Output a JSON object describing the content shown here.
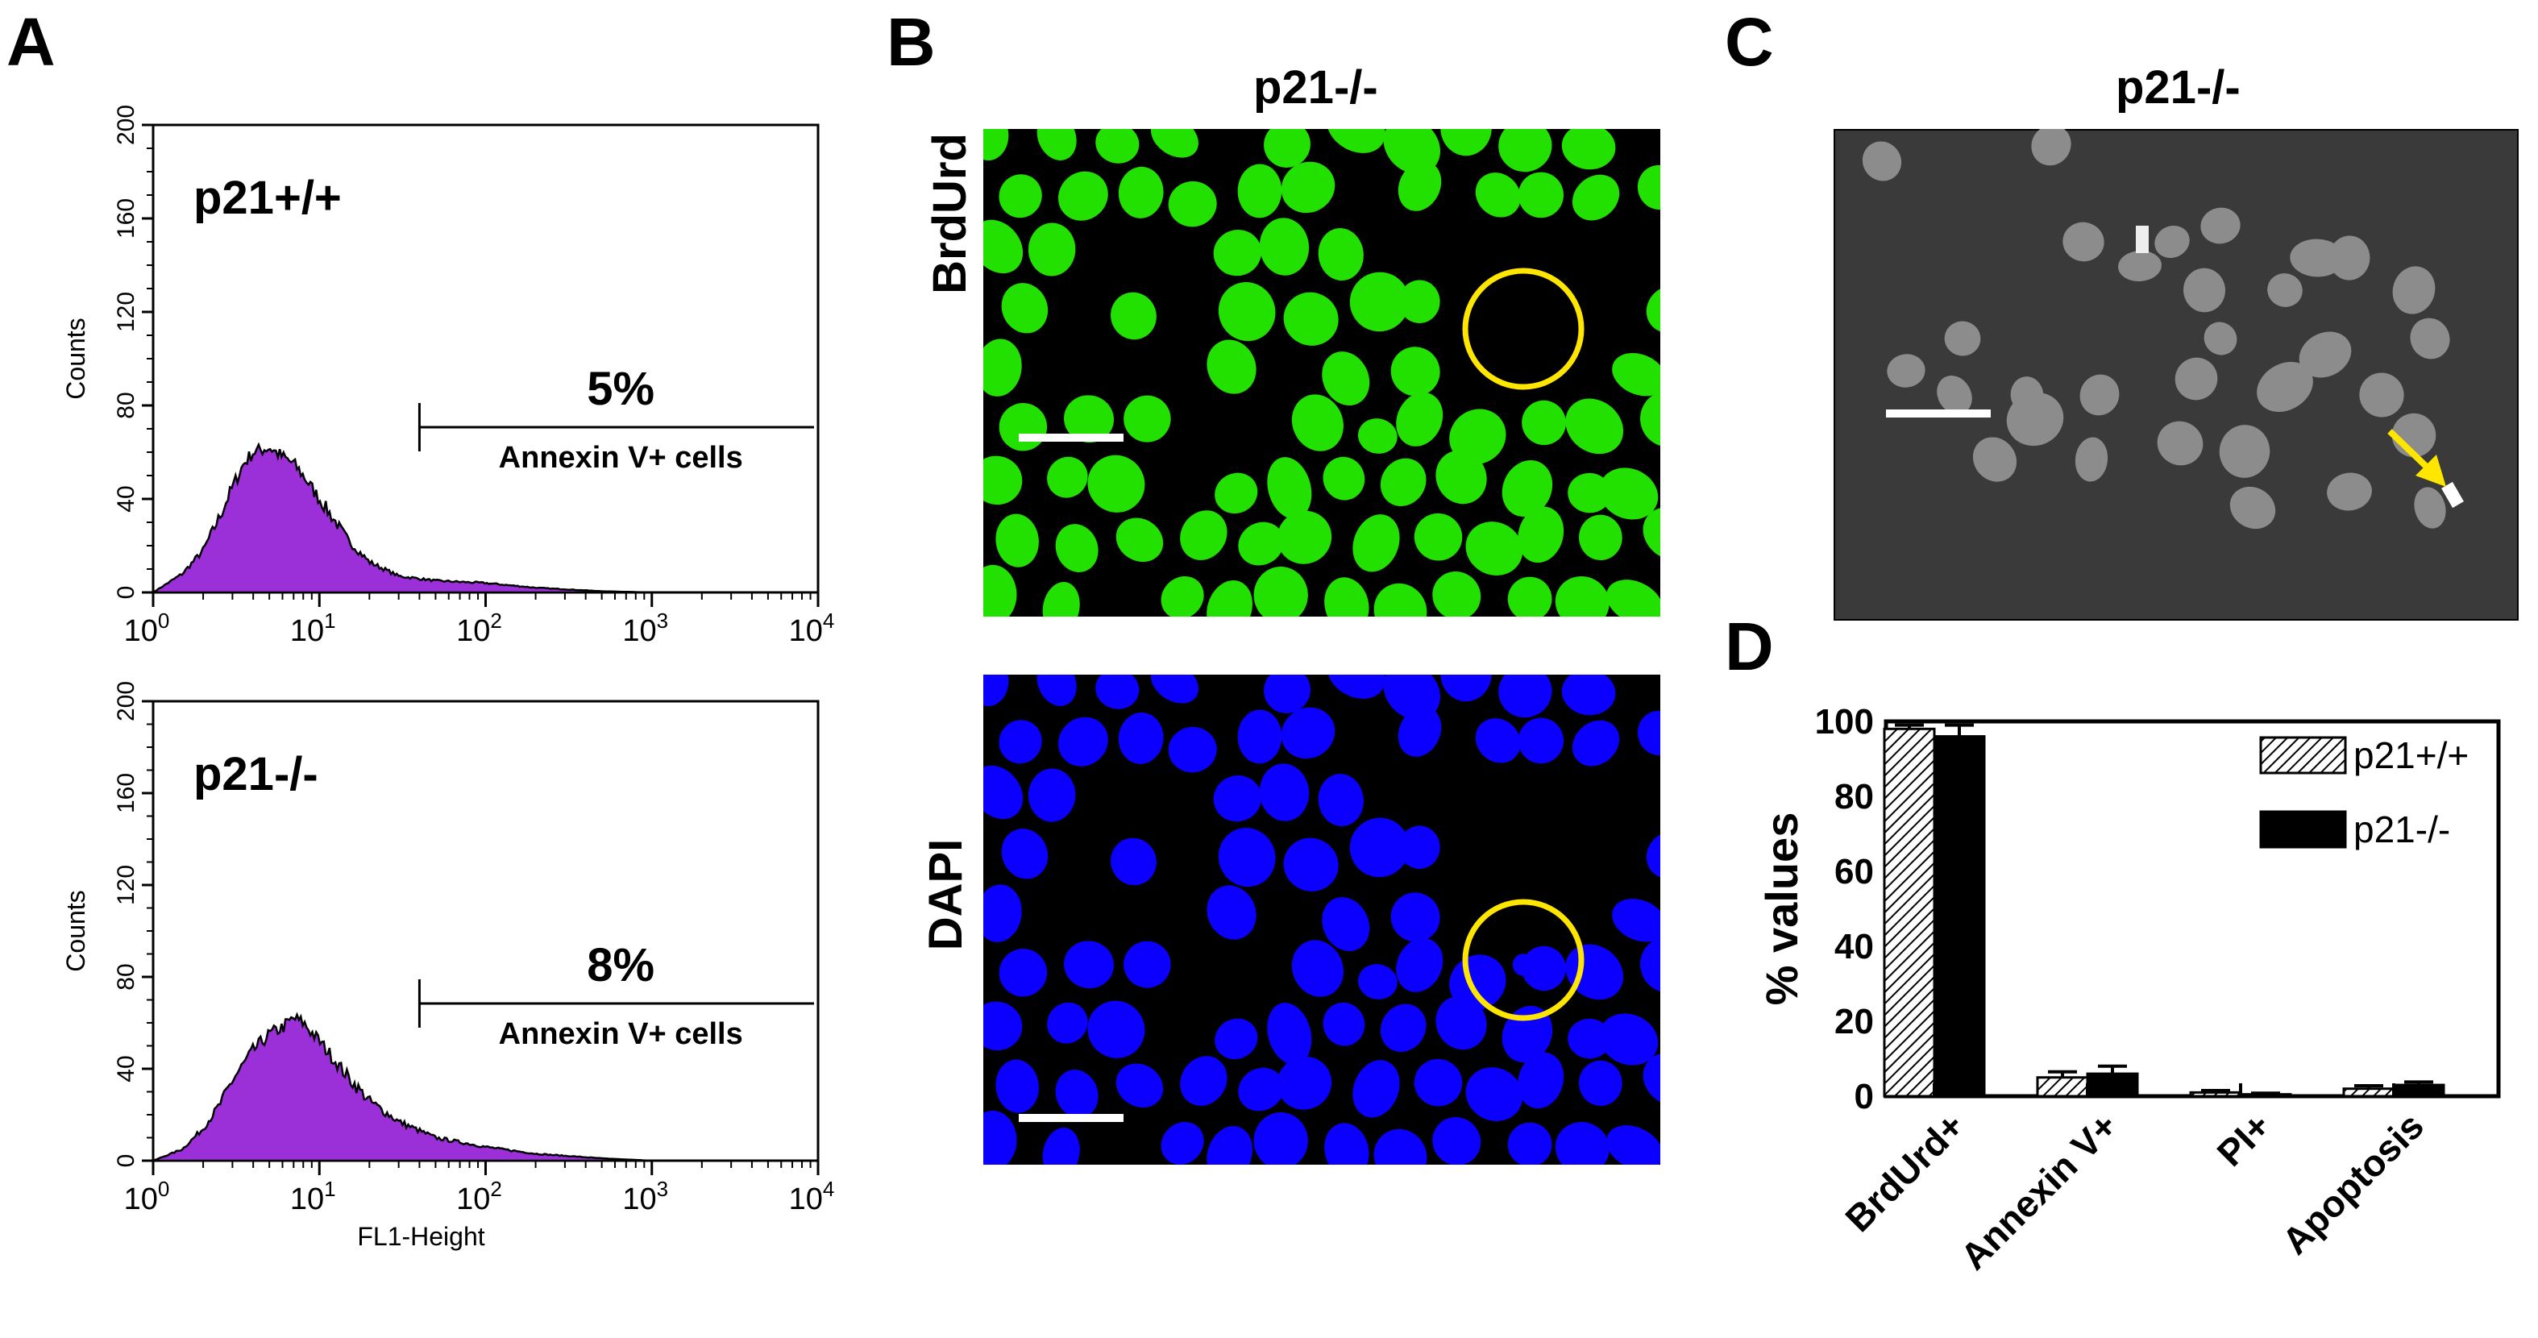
{
  "panels": {
    "a_letter": "A",
    "b_letter": "B",
    "c_letter": "C",
    "d_letter": "D"
  },
  "histograms": [
    {
      "sample": "p21+/+",
      "percent": "5%",
      "gate_label": "Annexin V+ cells",
      "ylabel": "Counts",
      "xlabel": "",
      "yticks": [
        "0",
        "40",
        "80",
        "120",
        "160",
        "200"
      ],
      "xtick_exponents": [
        "0",
        "1",
        "2",
        "3",
        "4"
      ],
      "xtick_base": "10",
      "fill_color": "#9b30d9"
    },
    {
      "sample": "p21-/-",
      "percent": "8%",
      "gate_label": "Annexin V+ cells",
      "ylabel": "Counts",
      "xlabel": "FL1-Height",
      "yticks": [
        "0",
        "40",
        "80",
        "120",
        "160",
        "200"
      ],
      "xtick_exponents": [
        "0",
        "1",
        "2",
        "3",
        "4"
      ],
      "xtick_base": "10",
      "fill_color": "#9b30d9"
    }
  ],
  "panel_b": {
    "title": "p21-/-",
    "top_stain": "BrdUrd",
    "bottom_stain": "DAPI",
    "top_color": "#22e000",
    "bottom_color": "#0b00ff",
    "circle_color": "#ffe600"
  },
  "panel_c": {
    "title": "p21-/-",
    "arrow_color": "#ffe600"
  },
  "chart_data": [
    {
      "type": "area",
      "title": "p21+/+",
      "xlabel": "",
      "ylabel": "Counts",
      "xscale": "log",
      "xlim": [
        1,
        10000
      ],
      "ylim": [
        0,
        200
      ],
      "gate_start": 40,
      "gate_end": 10000,
      "gate_percent": "5%",
      "x": [
        1,
        1.5,
        2,
        2.5,
        3,
        3.5,
        4,
        5,
        6,
        7,
        8,
        10,
        12,
        15,
        20,
        30,
        50,
        100,
        200,
        500,
        1000
      ],
      "y": [
        0,
        8,
        18,
        32,
        45,
        55,
        60,
        62,
        58,
        55,
        50,
        40,
        32,
        22,
        13,
        7,
        5,
        4,
        2,
        0.5,
        0
      ]
    },
    {
      "type": "area",
      "title": "p21-/-",
      "xlabel": "FL1-Height",
      "ylabel": "Counts",
      "xscale": "log",
      "xlim": [
        1,
        10000
      ],
      "ylim": [
        0,
        200
      ],
      "gate_start": 40,
      "gate_end": 10000,
      "gate_percent": "8%",
      "x": [
        1,
        1.5,
        2,
        2.5,
        3,
        4,
        5,
        6,
        7,
        8,
        10,
        12,
        15,
        20,
        30,
        50,
        100,
        200,
        500,
        1000
      ],
      "y": [
        0,
        5,
        14,
        24,
        35,
        48,
        55,
        58,
        62,
        60,
        52,
        45,
        36,
        26,
        17,
        10,
        6,
        3,
        1,
        0
      ]
    },
    {
      "type": "bar",
      "title": "",
      "xlabel": "",
      "ylabel": "% values",
      "categories": [
        "BrdUrd+",
        "Annexin V+",
        "PI+",
        "Apoptosis"
      ],
      "ylim": [
        0,
        100
      ],
      "yticks": [
        "0",
        "20",
        "40",
        "60",
        "80",
        "100"
      ],
      "legend_position": "top-right",
      "series": [
        {
          "name": "p21+/+",
          "values": [
            98,
            5,
            1,
            2
          ],
          "errors": [
            1,
            1.5,
            0.5,
            0.8
          ],
          "pattern": "hatched"
        },
        {
          "name": "p21-/-",
          "values": [
            96,
            6,
            0.5,
            3
          ],
          "errors": [
            3,
            2,
            0.3,
            0.8
          ],
          "pattern": "solid"
        }
      ]
    }
  ]
}
